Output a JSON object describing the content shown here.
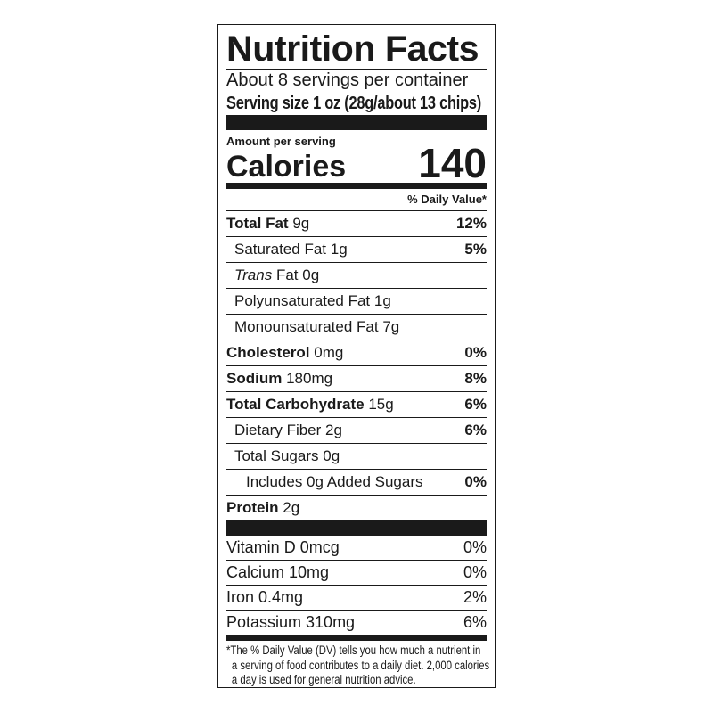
{
  "title": "Nutrition Facts",
  "servings_per_container": "About 8 servings per container",
  "serving_size": "Serving size 1 oz (28g/about 13 chips)",
  "amount_per_serving": "Amount per serving",
  "calories_label": "Calories",
  "calories_value": "140",
  "daily_value_header": "% Daily Value*",
  "nutrients": [
    {
      "name": "Total Fat",
      "amount": "9g",
      "dv": "12%",
      "bold": true,
      "indent": 0
    },
    {
      "name": "Saturated Fat",
      "amount": "1g",
      "dv": "5%",
      "bold": false,
      "indent": 1
    },
    {
      "name": "Trans",
      "name_suffix": "Fat",
      "amount": "0g",
      "dv": "",
      "bold": false,
      "indent": 1,
      "italic_prefix": true
    },
    {
      "name": "Polyunsaturated Fat",
      "amount": "1g",
      "dv": "",
      "bold": false,
      "indent": 1
    },
    {
      "name": "Monounsaturated Fat",
      "amount": "7g",
      "dv": "",
      "bold": false,
      "indent": 1
    },
    {
      "name": "Cholesterol",
      "amount": "0mg",
      "dv": "0%",
      "bold": true,
      "indent": 0
    },
    {
      "name": "Sodium",
      "amount": "180mg",
      "dv": "8%",
      "bold": true,
      "indent": 0
    },
    {
      "name": "Total Carbohydrate",
      "amount": "15g",
      "dv": "6%",
      "bold": true,
      "indent": 0
    },
    {
      "name": "Dietary Fiber",
      "amount": "2g",
      "dv": "6%",
      "bold": false,
      "indent": 1
    },
    {
      "name": "Total Sugars",
      "amount": "0g",
      "dv": "",
      "bold": false,
      "indent": 1
    },
    {
      "name": "Includes 0g Added Sugars",
      "amount": "",
      "dv": "0%",
      "bold": false,
      "indent": 2
    },
    {
      "name": "Protein",
      "amount": "2g",
      "dv": "",
      "bold": true,
      "indent": 0
    }
  ],
  "vitamins": [
    {
      "label": "Vitamin D 0mcg",
      "dv": "0%"
    },
    {
      "label": "Calcium 10mg",
      "dv": "0%"
    },
    {
      "label": "Iron 0.4mg",
      "dv": "2%"
    },
    {
      "label": "Potassium 310mg",
      "dv": "6%"
    }
  ],
  "footnote": [
    "*The % Daily Value (DV) tells you how much a nutrient in",
    "a serving of food contributes to a daily diet. 2,000 calories",
    "a day is used for general nutrition advice."
  ]
}
